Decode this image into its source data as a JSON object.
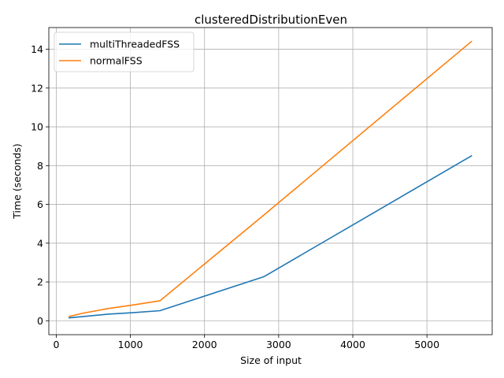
{
  "chart_data": {
    "type": "line",
    "title": "clusteredDistributionEven",
    "xlabel": "Size of input",
    "ylabel": "Time (seconds)",
    "xlim": [
      -100,
      5880
    ],
    "ylim": [
      -0.72,
      15.12
    ],
    "xticks": [
      0,
      1000,
      2000,
      3000,
      4000,
      5000
    ],
    "yticks": [
      0,
      2,
      4,
      6,
      8,
      10,
      12,
      14
    ],
    "grid": true,
    "legend_position": "upper-left",
    "series": [
      {
        "name": "multiThreadedFSS",
        "color": "#1f77b4",
        "x": [
          175,
          350,
          700,
          1050,
          1400,
          2800,
          5600
        ],
        "y": [
          0.15,
          0.21,
          0.34,
          0.42,
          0.52,
          2.27,
          8.5
        ]
      },
      {
        "name": "normalFSS",
        "color": "#ff7f0e",
        "x": [
          175,
          350,
          700,
          1050,
          1400,
          2800,
          5600
        ],
        "y": [
          0.22,
          0.38,
          0.63,
          0.82,
          1.03,
          5.45,
          14.4
        ]
      }
    ]
  }
}
